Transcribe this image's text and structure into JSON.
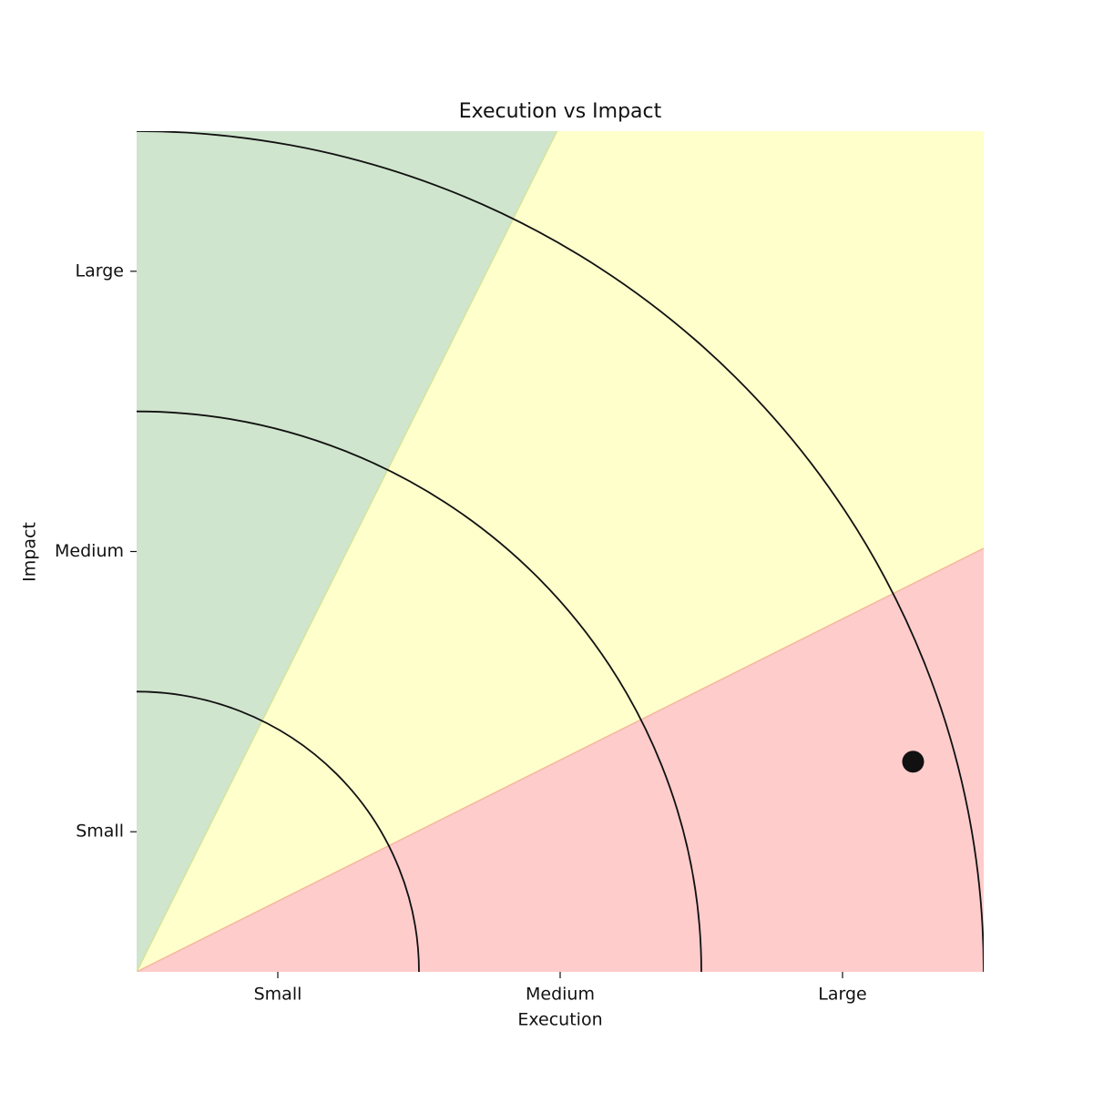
{
  "chart_data": {
    "type": "scatter",
    "title": "Execution vs Impact",
    "xlabel": "Execution",
    "ylabel": "Impact",
    "xlim": [
      0,
      3
    ],
    "ylim": [
      0,
      3
    ],
    "xticks": [
      {
        "value": 0.5,
        "label": "Small"
      },
      {
        "value": 1.5,
        "label": "Medium"
      },
      {
        "value": 2.5,
        "label": "Large"
      }
    ],
    "yticks": [
      {
        "value": 0.5,
        "label": "Small"
      },
      {
        "value": 1.5,
        "label": "Medium"
      },
      {
        "value": 2.5,
        "label": "Large"
      }
    ],
    "zone_slopes": [
      0.5,
      2
    ],
    "zone_colors": [
      "#ffcccc",
      "#ffffcc",
      "#cfe5cd"
    ],
    "zone_edge_colors": [
      "#f5b8a0",
      "#d6e39a"
    ],
    "arcs": [
      1,
      2,
      3
    ],
    "series": [
      {
        "color": "#111111",
        "x": [
          2.75
        ],
        "values": [
          0.75
        ]
      }
    ]
  }
}
